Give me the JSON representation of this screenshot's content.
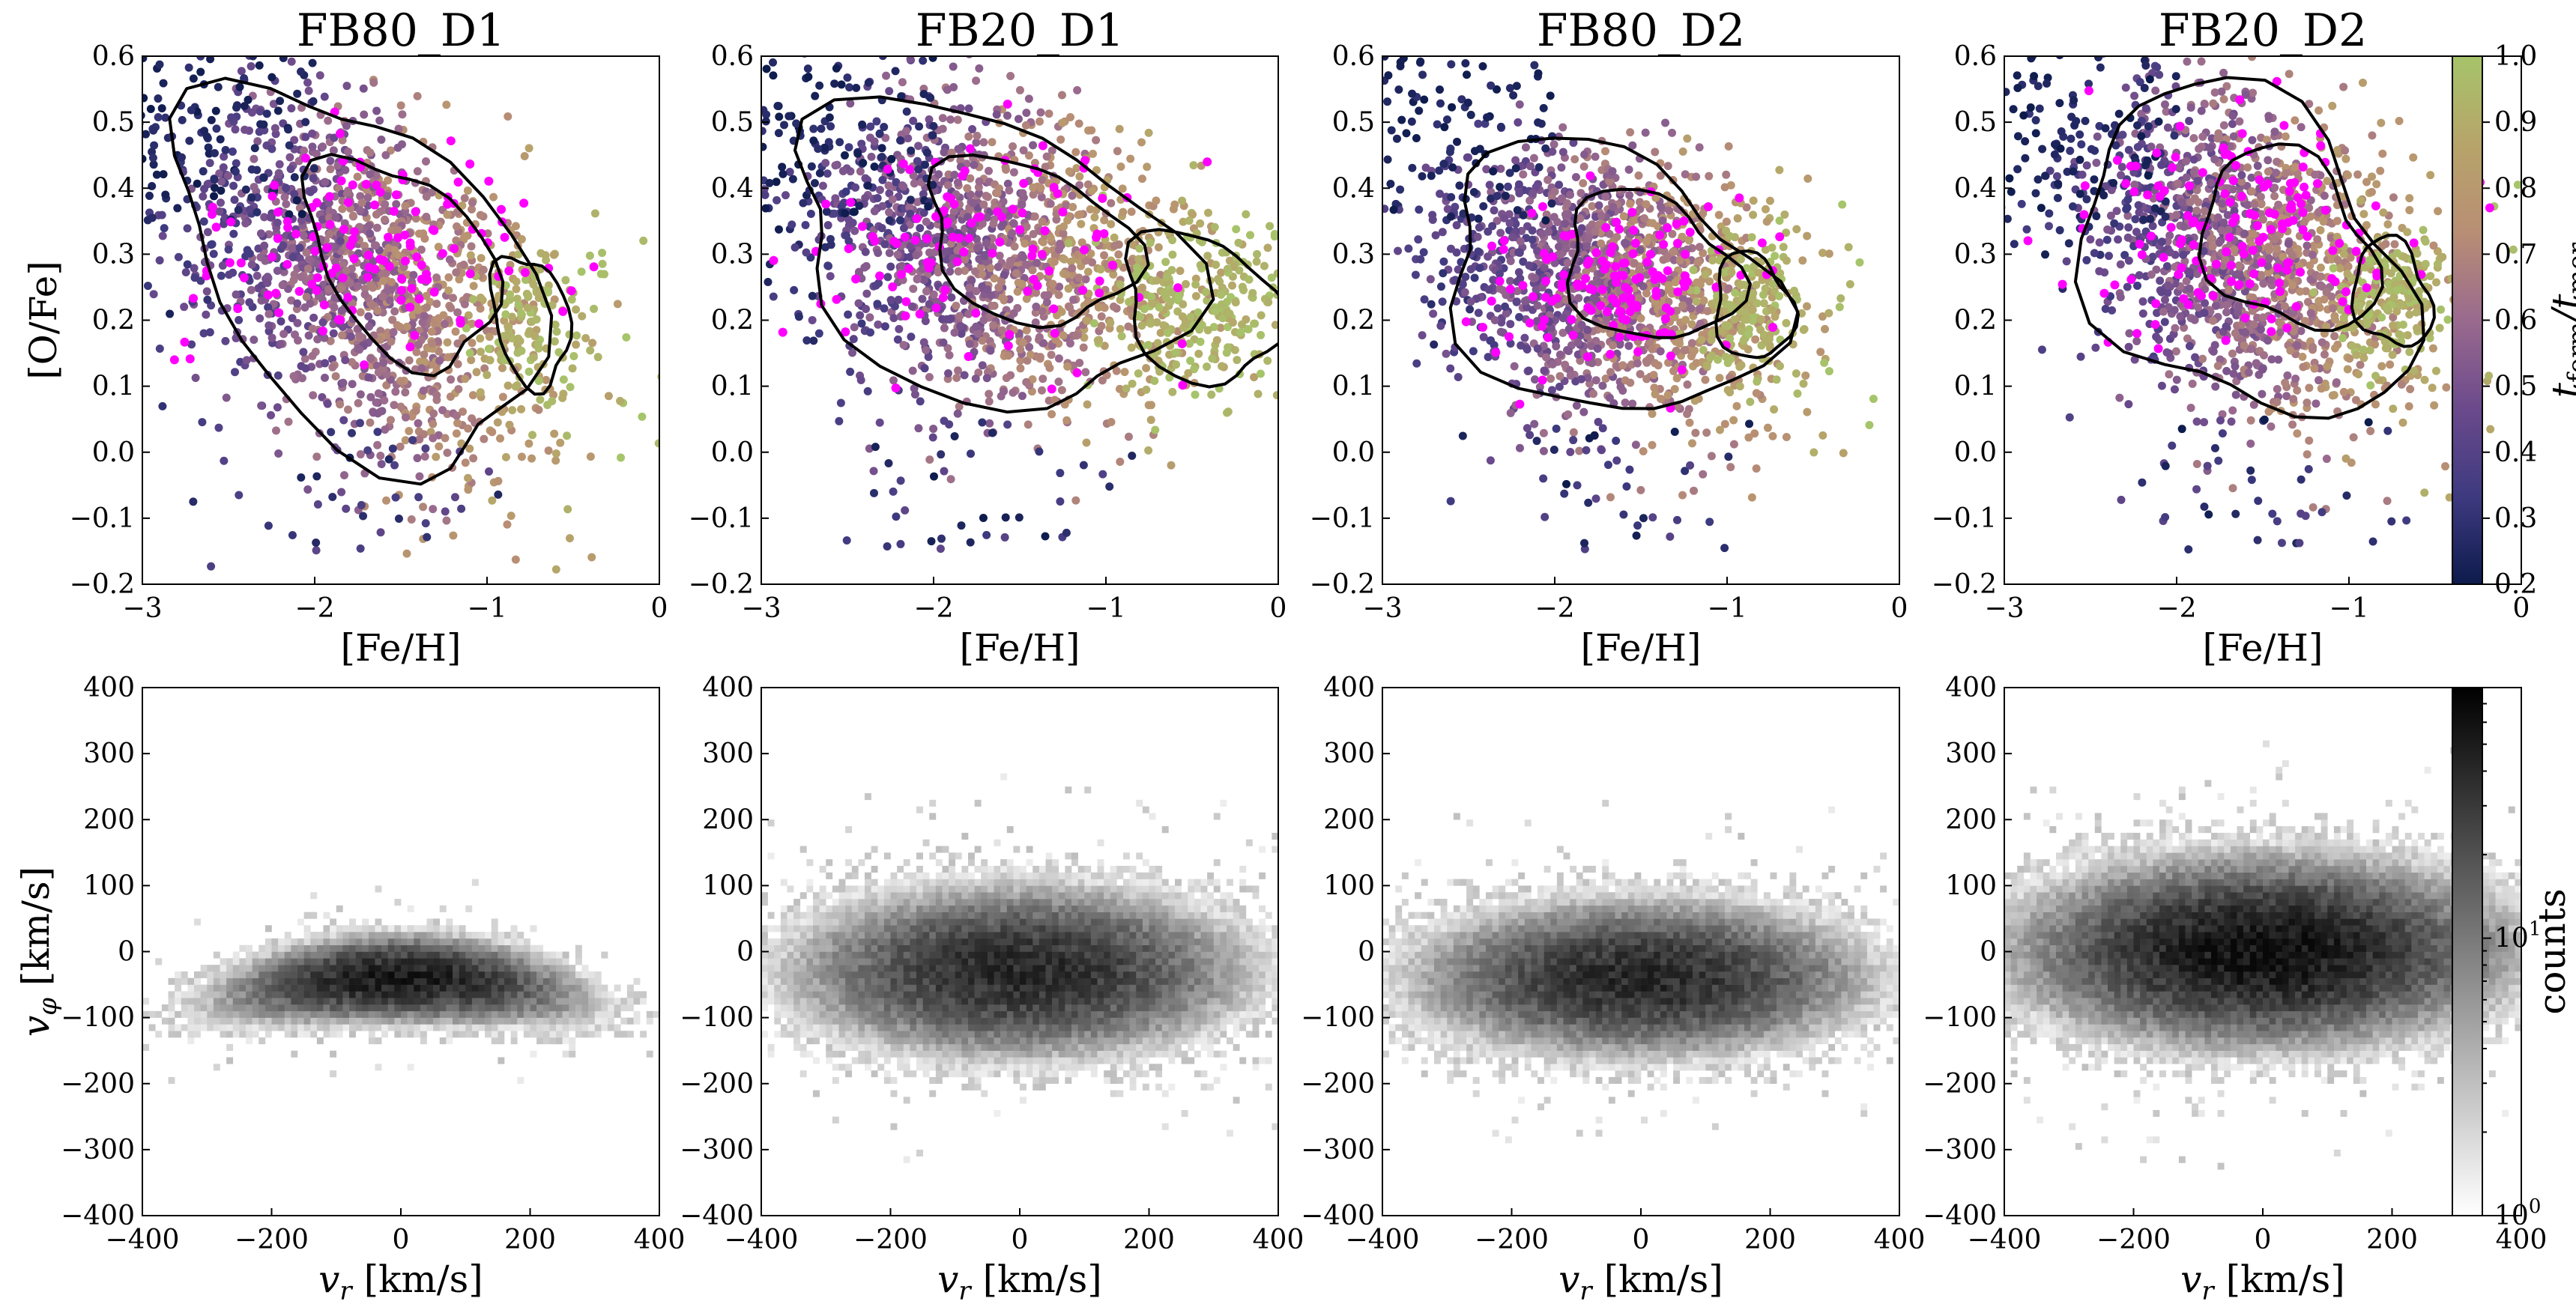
{
  "chart_data": [
    {
      "type": "scatter",
      "title": "FB80_D1",
      "xlabel": "[Fe/H]",
      "ylabel": "[O/Fe]",
      "xlim": [
        -3,
        0
      ],
      "ylim": [
        -0.2,
        0.6
      ],
      "xticks": [
        "−3",
        "−2",
        "−1",
        "0"
      ],
      "yticks": [
        "−0.2",
        "−0.1",
        "0.0",
        "0.1",
        "0.2",
        "0.3",
        "0.4",
        "0.5",
        "0.6"
      ],
      "color_by": "t_form/t_mer",
      "highlight_color": "#ff00ff",
      "cloud": {
        "center": [
          -1.75,
          0.27
        ],
        "spread": [
          0.55,
          0.13
        ],
        "tilt": -0.12,
        "n": 1400
      },
      "green_tail": {
        "center": [
          -0.75,
          0.2
        ],
        "spread": [
          0.15,
          0.06
        ],
        "n": 120
      },
      "magenta": {
        "center": [
          -1.7,
          0.3
        ],
        "spread": [
          0.5,
          0.09
        ],
        "n": 130
      }
    },
    {
      "type": "scatter",
      "title": "FB20_D1",
      "xlabel": "[Fe/H]",
      "ylabel": "",
      "xlim": [
        -3,
        0
      ],
      "ylim": [
        -0.2,
        0.6
      ],
      "xticks": [
        "−3",
        "−2",
        "−1",
        "0"
      ],
      "yticks": [
        "−0.2",
        "−0.1",
        "0.0",
        "0.1",
        "0.2",
        "0.3",
        "0.4",
        "0.5",
        "0.6"
      ],
      "color_by": "t_form/t_mer",
      "highlight_color": "#ff00ff",
      "cloud": {
        "center": [
          -1.7,
          0.3
        ],
        "spread": [
          0.6,
          0.11
        ],
        "tilt": -0.06,
        "n": 1400
      },
      "green_tail": {
        "center": [
          -0.45,
          0.22
        ],
        "spread": [
          0.3,
          0.07
        ],
        "n": 260
      },
      "magenta": {
        "center": [
          -1.7,
          0.32
        ],
        "spread": [
          0.6,
          0.08
        ],
        "n": 110
      }
    },
    {
      "type": "scatter",
      "title": "FB80_D2",
      "xlabel": "[Fe/H]",
      "ylabel": "",
      "xlim": [
        -3,
        0
      ],
      "ylim": [
        -0.2,
        0.6
      ],
      "xticks": [
        "−3",
        "−2",
        "−1",
        "0"
      ],
      "yticks": [
        "−0.2",
        "−0.1",
        "0.0",
        "0.1",
        "0.2",
        "0.3",
        "0.4",
        "0.5",
        "0.6"
      ],
      "color_by": "t_form/t_mer",
      "highlight_color": "#ff00ff",
      "cloud": {
        "center": [
          -1.7,
          0.26
        ],
        "spread": [
          0.5,
          0.1
        ],
        "tilt": -0.05,
        "n": 1400
      },
      "green_tail": {
        "center": [
          -0.85,
          0.22
        ],
        "spread": [
          0.15,
          0.05
        ],
        "n": 160
      },
      "magenta": {
        "center": [
          -1.6,
          0.25
        ],
        "spread": [
          0.35,
          0.07
        ],
        "n": 140
      }
    },
    {
      "type": "scatter",
      "title": "FB20_D2",
      "xlabel": "[Fe/H]",
      "ylabel": "",
      "xlim": [
        -3,
        0
      ],
      "ylim": [
        -0.2,
        0.6
      ],
      "xticks": [
        "−3",
        "−2",
        "−1",
        "0"
      ],
      "yticks": [
        "−0.2",
        "−0.1",
        "0.0",
        "0.1",
        "0.2",
        "0.3",
        "0.4",
        "0.5",
        "0.6"
      ],
      "color_by": "t_form/t_mer",
      "highlight_color": "#ff00ff",
      "cloud": {
        "center": [
          -1.6,
          0.3
        ],
        "spread": [
          0.5,
          0.12
        ],
        "tilt": -0.08,
        "n": 1400
      },
      "green_tail": {
        "center": [
          -0.75,
          0.24
        ],
        "spread": [
          0.15,
          0.05
        ],
        "n": 180
      },
      "magenta": {
        "center": [
          -1.65,
          0.34
        ],
        "spread": [
          0.45,
          0.08
        ],
        "n": 150
      }
    },
    {
      "type": "heatmap",
      "title": "",
      "xlabel": "v_r [km/s]",
      "ylabel": "v_φ [km/s]",
      "xlim": [
        -400,
        400
      ],
      "ylim": [
        -400,
        400
      ],
      "xticks": [
        "−400",
        "−200",
        "0",
        "200",
        "400"
      ],
      "yticks": [
        "−400",
        "−300",
        "−200",
        "−100",
        "0",
        "100",
        "200",
        "300",
        "400"
      ],
      "distribution": {
        "center": [
          0,
          -40
        ],
        "sigma": [
          120,
          28
        ],
        "curvature": 0.0016,
        "peak": 60
      }
    },
    {
      "type": "heatmap",
      "title": "",
      "xlabel": "v_r [km/s]",
      "ylabel": "",
      "xlim": [
        -400,
        400
      ],
      "ylim": [
        -400,
        400
      ],
      "xticks": [
        "−400",
        "−200",
        "0",
        "200",
        "400"
      ],
      "yticks": [
        "−400",
        "−300",
        "−200",
        "−100",
        "0",
        "100",
        "200",
        "300",
        "400"
      ],
      "distribution": {
        "center": [
          0,
          -30
        ],
        "sigma": [
          150,
          55
        ],
        "curvature": 0.0,
        "peak": 45
      }
    },
    {
      "type": "heatmap",
      "title": "",
      "xlabel": "v_r [km/s]",
      "ylabel": "",
      "xlim": [
        -400,
        400
      ],
      "ylim": [
        -400,
        400
      ],
      "xticks": [
        "−400",
        "−200",
        "0",
        "200",
        "400"
      ],
      "yticks": [
        "−400",
        "−300",
        "−200",
        "−100",
        "0",
        "100",
        "200",
        "300",
        "400"
      ],
      "distribution": {
        "center": [
          0,
          -40
        ],
        "sigma": [
          150,
          50
        ],
        "curvature": 0.0,
        "peak": 45
      }
    },
    {
      "type": "heatmap",
      "title": "",
      "xlabel": "v_r [km/s]",
      "ylabel": "",
      "xlim": [
        -400,
        400
      ],
      "ylim": [
        -400,
        400
      ],
      "xticks": [
        "−400",
        "−200",
        "0",
        "200",
        "400"
      ],
      "yticks": [
        "−400",
        "−300",
        "−200",
        "−100",
        "0",
        "100",
        "200",
        "300",
        "400"
      ],
      "distribution": {
        "center": [
          0,
          0
        ],
        "sigma": [
          160,
          60
        ],
        "curvature": 0.0,
        "peak": 70
      }
    }
  ],
  "colorbars": {
    "top": {
      "label": "t_form/t_mer",
      "label_main": "t",
      "label_sub1": "form",
      "label_mid": "/t",
      "label_sub2": "mer",
      "range": [
        0.2,
        1.0
      ],
      "ticks": [
        "0.2",
        "0.3",
        "0.4",
        "0.5",
        "0.6",
        "0.7",
        "0.8",
        "0.9",
        "1.0"
      ],
      "stops": [
        "#0d1b4c",
        "#3e3a80",
        "#6b4a8c",
        "#9a6a8e",
        "#b88e74",
        "#b7a46a",
        "#a6c46a"
      ]
    },
    "bottom": {
      "label": "counts",
      "scale": "log",
      "range": [
        1,
        80
      ],
      "ticks": [
        {
          "base": "10",
          "exp": "0",
          "value": 1
        },
        {
          "base": "10",
          "exp": "1",
          "value": 10
        }
      ],
      "stops": [
        "#ffffff",
        "#000000"
      ]
    }
  }
}
